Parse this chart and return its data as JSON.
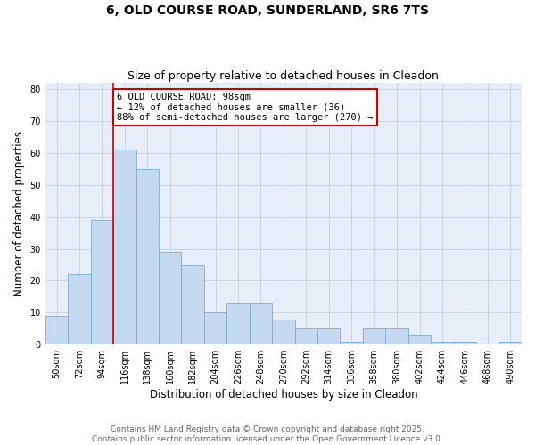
{
  "title": "6, OLD COURSE ROAD, SUNDERLAND, SR6 7TS",
  "subtitle": "Size of property relative to detached houses in Cleadon",
  "xlabel": "Distribution of detached houses by size in Cleadon",
  "ylabel": "Number of detached properties",
  "categories": [
    "50sqm",
    "72sqm",
    "94sqm",
    "116sqm",
    "138sqm",
    "160sqm",
    "182sqm",
    "204sqm",
    "226sqm",
    "248sqm",
    "270sqm",
    "292sqm",
    "314sqm",
    "336sqm",
    "358sqm",
    "380sqm",
    "402sqm",
    "424sqm",
    "446sqm",
    "468sqm",
    "490sqm"
  ],
  "values": [
    9,
    22,
    39,
    61,
    55,
    29,
    25,
    10,
    13,
    13,
    8,
    5,
    5,
    1,
    5,
    5,
    3,
    1,
    1,
    0,
    1
  ],
  "bar_color": "#c5d9f0",
  "bar_edge_color": "#7bafd4",
  "marker_line_color": "#cc0000",
  "marker_line_index": 2,
  "annotation_text": "6 OLD COURSE ROAD: 98sqm\n← 12% of detached houses are smaller (36)\n88% of semi-detached houses are larger (270) →",
  "annotation_box_facecolor": "#ffffff",
  "annotation_box_edgecolor": "#cc0000",
  "ylim": [
    0,
    82
  ],
  "yticks": [
    0,
    10,
    20,
    30,
    40,
    50,
    60,
    70,
    80
  ],
  "grid_color": "#c8d4e8",
  "bg_color": "#e8eef8",
  "footer_text": "Contains HM Land Registry data © Crown copyright and database right 2025.\nContains public sector information licensed under the Open Government Licence v3.0.",
  "title_fontsize": 10,
  "subtitle_fontsize": 9,
  "axis_label_fontsize": 8.5,
  "tick_fontsize": 7,
  "annotation_fontsize": 7.5,
  "footer_fontsize": 6.5
}
